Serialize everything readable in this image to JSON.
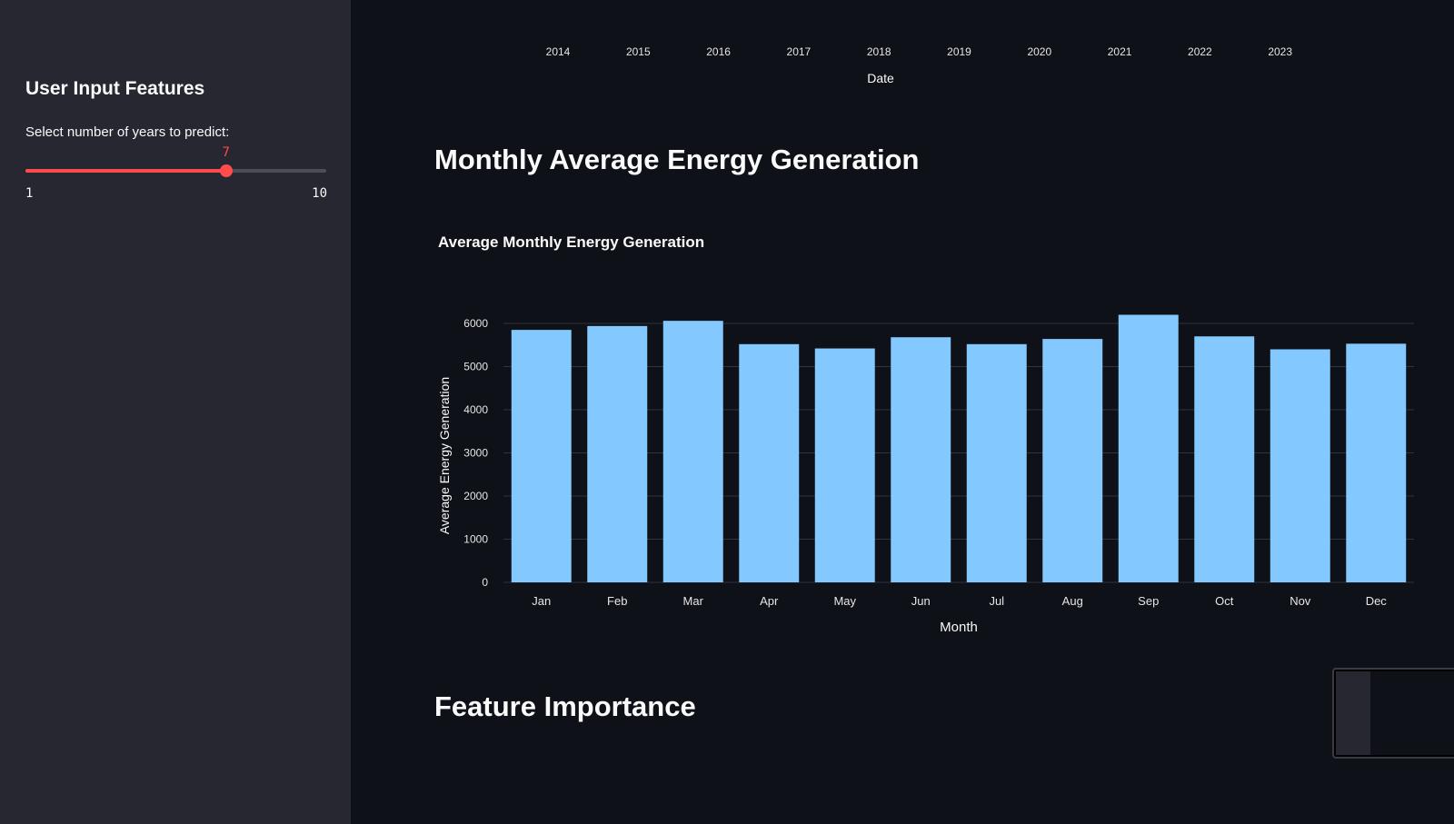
{
  "sidebar": {
    "title": "User Input Features",
    "slider": {
      "label": "Select number of years to predict:",
      "value": 7,
      "min": 1,
      "max": 10,
      "min_label": "1",
      "max_label": "10",
      "value_label": "7",
      "accent": "#ff4b4b"
    }
  },
  "top_axis": {
    "ticks": [
      "2014",
      "2015",
      "2016",
      "2017",
      "2018",
      "2019",
      "2020",
      "2021",
      "2022",
      "2023"
    ],
    "title": "Date"
  },
  "sections": {
    "monthly_title": "Monthly Average Energy Generation",
    "feature_title": "Feature Importance"
  },
  "chart_data": {
    "type": "bar",
    "title": "Average Monthly Energy Generation",
    "xlabel": "Month",
    "ylabel": "Average Energy Generation",
    "categories": [
      "Jan",
      "Feb",
      "Mar",
      "Apr",
      "May",
      "Jun",
      "Jul",
      "Aug",
      "Sep",
      "Oct",
      "Nov",
      "Dec"
    ],
    "values": [
      5850,
      5940,
      6060,
      5520,
      5420,
      5680,
      5520,
      5640,
      6200,
      5700,
      5400,
      5530
    ],
    "yticks": [
      0,
      1000,
      2000,
      3000,
      4000,
      5000,
      6000
    ],
    "ylim": [
      0,
      6000
    ],
    "grid": true,
    "bar_color": "#83c9ff",
    "grid_color": "#31333f"
  }
}
